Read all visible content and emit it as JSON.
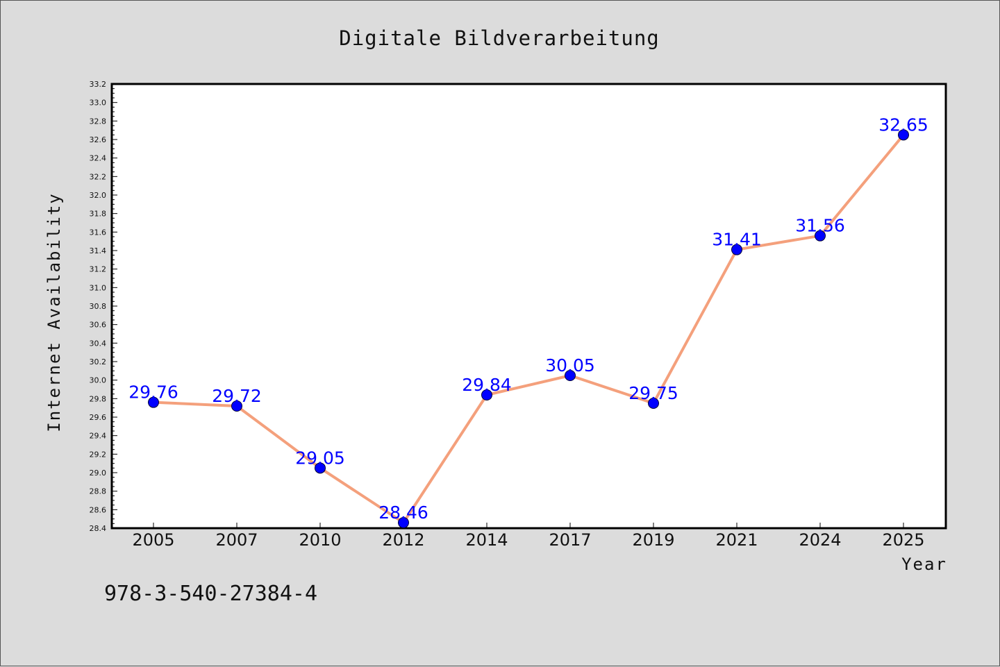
{
  "chart_data": {
    "type": "line",
    "title": "Digitale Bildverarbeitung",
    "xlabel": "Year",
    "ylabel": "Internet Availability",
    "categories": [
      "2005",
      "2007",
      "2010",
      "2012",
      "2014",
      "2017",
      "2019",
      "2021",
      "2024",
      "2025"
    ],
    "series": [
      {
        "values": [
          29.76,
          29.72,
          29.05,
          28.46,
          29.84,
          30.05,
          29.75,
          31.41,
          31.56,
          32.65
        ],
        "data_labels": [
          "29.76",
          "29.72",
          "29.05",
          "28.46",
          "29.84",
          "30.05",
          "29.75",
          "31.41",
          "31.56",
          "32.65"
        ]
      }
    ],
    "ylim": [
      28.4,
      33.2
    ],
    "yticks": [
      "28.4",
      "28.6",
      "28.8",
      "29.0",
      "29.2",
      "29.4",
      "29.6",
      "29.8",
      "30.0",
      "30.2",
      "30.4",
      "30.6",
      "30.8",
      "31.0",
      "31.2",
      "31.4",
      "31.6",
      "31.8",
      "32.0",
      "32.2",
      "32.4",
      "32.6",
      "32.8",
      "33.0",
      "33.2"
    ],
    "grid": false,
    "legend": "none",
    "colors": {
      "line": "#f4a07c",
      "marker": "#0000ff",
      "label": "#0000ff",
      "background": "#dcdcdc",
      "plot_background": "#ffffff"
    }
  },
  "footer": {
    "text": "978-3-540-27384-4"
  }
}
